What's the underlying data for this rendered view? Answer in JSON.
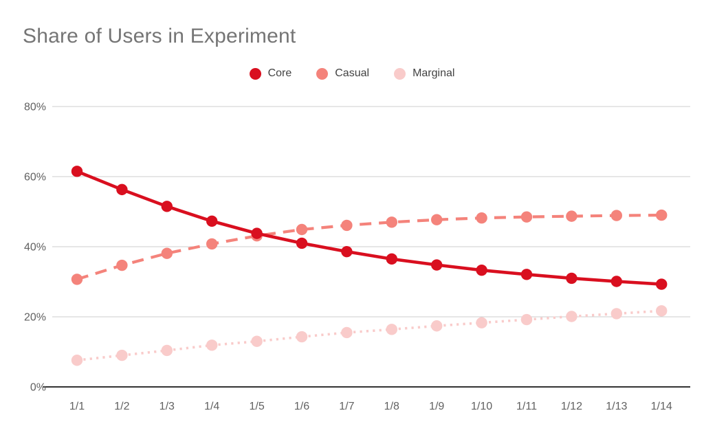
{
  "title": "Share of Users in Experiment",
  "chart_data": {
    "type": "line",
    "title": "Share of Users in Experiment",
    "x": [
      "1/1",
      "1/2",
      "1/3",
      "1/4",
      "1/5",
      "1/6",
      "1/7",
      "1/8",
      "1/9",
      "1/10",
      "1/11",
      "1/12",
      "1/13",
      "1/14"
    ],
    "series": [
      {
        "name": "Marginal",
        "color": "#F9CBCA",
        "line_style": "dotted",
        "values": [
          7.6,
          9.0,
          10.4,
          11.9,
          13.0,
          14.3,
          15.5,
          16.4,
          17.4,
          18.3,
          19.2,
          20.1,
          20.9,
          21.7
        ]
      },
      {
        "name": "Casual",
        "color": "#F4837B",
        "line_style": "dashed",
        "values": [
          30.7,
          34.7,
          38.1,
          40.8,
          43.1,
          44.9,
          46.1,
          47.0,
          47.7,
          48.2,
          48.5,
          48.7,
          48.9,
          49.0
        ]
      },
      {
        "name": "Core",
        "color": "#D90F1F",
        "line_style": "solid",
        "values": [
          61.5,
          56.3,
          51.5,
          47.3,
          43.8,
          41.0,
          38.6,
          36.5,
          34.8,
          33.3,
          32.1,
          31.0,
          30.1,
          29.3
        ]
      }
    ],
    "legend_order": [
      "Core",
      "Casual",
      "Marginal"
    ],
    "xlabel": "",
    "ylabel": "",
    "y_ticks": [
      "0%",
      "20%",
      "40%",
      "60%",
      "80%"
    ],
    "y_tick_values": [
      0,
      20,
      40,
      60,
      80
    ],
    "ylim": [
      0,
      80
    ],
    "grid": true,
    "legend_position": "top",
    "marker": "circle"
  }
}
